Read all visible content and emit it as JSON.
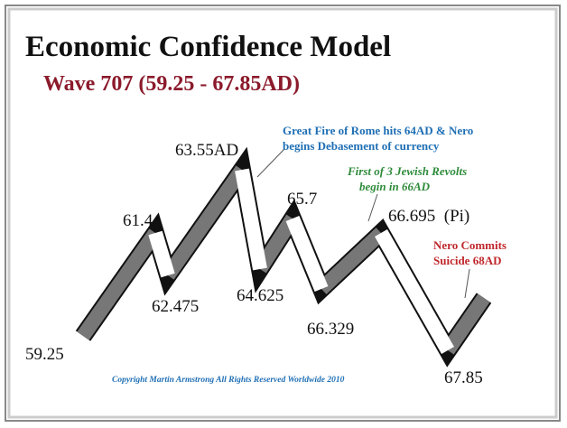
{
  "title": "Economic Confidence Model",
  "subtitle": "Wave 707 (59.25 - 67.85AD)",
  "points": [
    {
      "label": "59.25"
    },
    {
      "label": "61.4"
    },
    {
      "label": "62.475"
    },
    {
      "label": "63.55AD"
    },
    {
      "label": "64.625"
    },
    {
      "label": "65.7"
    },
    {
      "label": "66.329"
    },
    {
      "label": "66.695  (Pi)"
    },
    {
      "label": "67.85"
    }
  ],
  "annotations": [
    {
      "lines": [
        "Great Fire of Rome hits 64AD & Nero",
        "begins Debasement of currency"
      ]
    },
    {
      "lines": [
        "First of 3 Jewish Revolts",
        "begin in 66AD"
      ]
    },
    {
      "lines": [
        "Nero Commits",
        "Suicide 68AD"
      ]
    }
  ],
  "copyright": "Copyright Martin Armstrong All Rights Reserved Worldwide 2010"
}
